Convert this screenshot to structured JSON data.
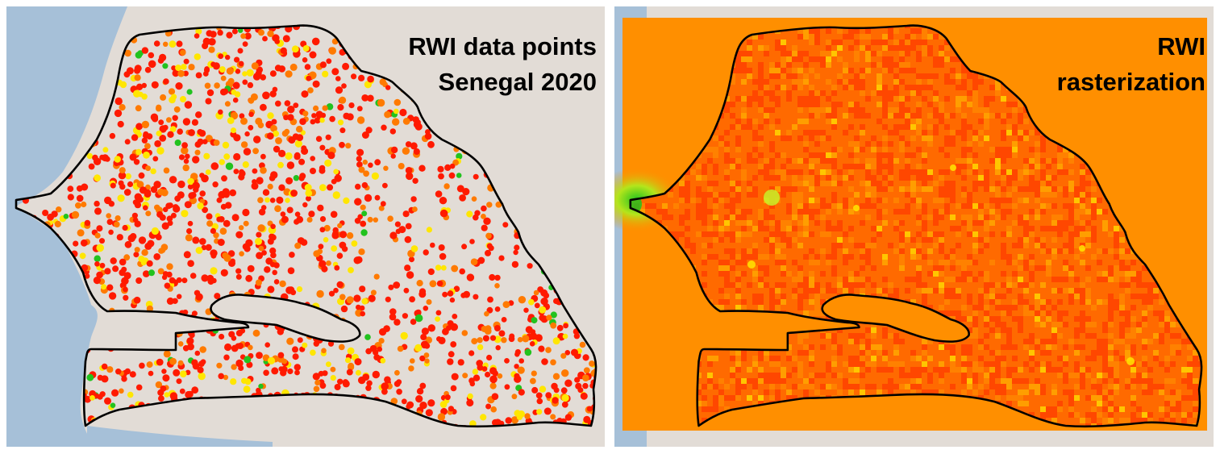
{
  "panels": [
    {
      "id": "points",
      "title_lines": [
        "RWI data points",
        "Senegal 2020"
      ],
      "style": "point markers over basemap"
    },
    {
      "id": "raster",
      "title_lines": [
        "RWI",
        "rasterization"
      ],
      "style": "interpolated raster surface"
    }
  ],
  "legend_colors": {
    "lowest": "#ff1a00",
    "low": "#ff7a00",
    "mid": "#ffe600",
    "high": "#22c21e"
  },
  "basemap_colors": {
    "land": "#e2dcd6",
    "ocean": "#a6c0d8",
    "border": "#000000",
    "raster_background": "#ff8f00"
  }
}
